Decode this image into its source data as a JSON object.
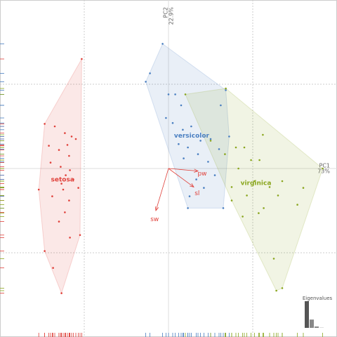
{
  "chart_data": {
    "type": "scatter",
    "xlim": [
      -2,
      2
    ],
    "ylim": [
      -2,
      2
    ],
    "xgrid": [
      -1,
      1
    ],
    "ygrid": [
      -1,
      1
    ],
    "grid": true,
    "hulls": true,
    "rug": true,
    "x_label": "PC1",
    "x_label_pct": "73%",
    "y_label": "PC2",
    "y_label_pct": "22.9%",
    "series": [
      {
        "name": "setosa",
        "color": "#e0403a",
        "x": [
          -1.03,
          -1.47,
          -1.35,
          -1.23,
          -1.15,
          -1.1,
          -1.42,
          -1.2,
          -1.3,
          -1.18,
          -1.4,
          -1.28,
          -1.17,
          -1.22,
          -1.13,
          -1.27,
          -1.07,
          -1.54,
          -1.25,
          -1.38,
          -1.18,
          -1.23,
          -1.3,
          -1.17,
          -1.05,
          -1.47,
          -1.37,
          -1.27
        ],
        "y": [
          1.3,
          0.53,
          0.5,
          0.42,
          0.38,
          0.35,
          0.27,
          0.28,
          0.22,
          0.15,
          0.07,
          0.02,
          -0.02,
          -0.08,
          -0.13,
          -0.18,
          -0.23,
          -0.25,
          -0.25,
          -0.33,
          -0.38,
          -0.52,
          -0.63,
          -0.82,
          -0.79,
          -0.98,
          -1.18,
          -1.48
        ]
      },
      {
        "name": "versicolor",
        "color": "#4a7fc1",
        "x": [
          -0.07,
          -0.22,
          -0.27,
          0,
          0.08,
          0.15,
          -0.03,
          0.05,
          0.17,
          0.27,
          0.12,
          0.23,
          0.38,
          0.5,
          0.6,
          0.35,
          0.47,
          0.18,
          0.55,
          0.33,
          0.42,
          0.25,
          0.23,
          0.65,
          0.68,
          0.62,
          0.72
        ],
        "y": [
          1.48,
          1.13,
          1.03,
          0.88,
          0.88,
          0.75,
          0.6,
          0.54,
          0.46,
          0.5,
          0.29,
          0.25,
          0.33,
          0.35,
          0.23,
          0.17,
          0.08,
          0.12,
          -0.08,
          -0.13,
          -0.23,
          -0.33,
          -0.47,
          -0.47,
          0.93,
          0.75,
          0.38
        ]
      },
      {
        "name": "virginica",
        "color": "#8aa61e",
        "x": [
          0.2,
          0.68,
          1.12,
          0.5,
          0.8,
          0.9,
          0.67,
          0.98,
          1.08,
          0.83,
          1.83,
          1.02,
          1.35,
          0.75,
          1.2,
          1.6,
          0.93,
          1.3,
          0.75,
          1.13,
          1.53,
          0.88,
          1.07,
          1.25,
          1.35,
          1.28
        ],
        "y": [
          0.88,
          0.95,
          0.4,
          0.33,
          0.25,
          0.25,
          0.17,
          0.1,
          0.1,
          0.0,
          0.0,
          -0.15,
          -0.15,
          -0.22,
          -0.22,
          -0.23,
          -0.32,
          -0.32,
          -0.38,
          -0.47,
          -0.43,
          -0.57,
          -0.53,
          -1.07,
          -1.42,
          -1.45
        ]
      }
    ],
    "loadings": {
      "color": "#e0403a",
      "names": [
        "sw",
        "sl",
        "pw"
      ],
      "x": [
        -0.15,
        0.3,
        0.35
      ],
      "y": [
        -0.5,
        -0.22,
        -0.03
      ]
    },
    "eigenvalues": {
      "title": "Eigenvalues",
      "values": [
        2.92,
        0.91,
        0.15,
        0.02
      ],
      "color": "#555555"
    }
  }
}
